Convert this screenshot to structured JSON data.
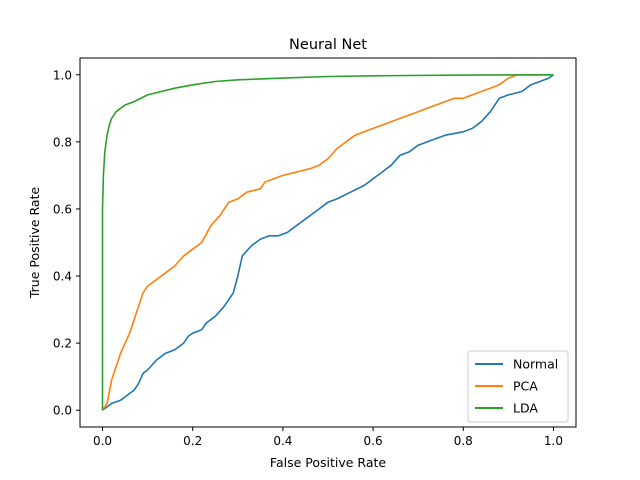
{
  "chart_data": {
    "type": "line",
    "title": "Neural Net",
    "xlabel": "False Positive Rate",
    "ylabel": "True Positive Rate",
    "xlim": [
      -0.05,
      1.05
    ],
    "ylim": [
      -0.05,
      1.05
    ],
    "xticks": [
      "0.0",
      "0.2",
      "0.4",
      "0.6",
      "0.8",
      "1.0"
    ],
    "yticks": [
      "0.0",
      "0.2",
      "0.4",
      "0.6",
      "0.8",
      "1.0"
    ],
    "grid": false,
    "legend_position": "lower right",
    "series": [
      {
        "name": "Normal",
        "color": "#1f77b4",
        "points": [
          [
            0,
            0
          ],
          [
            0.01,
            0.01
          ],
          [
            0.02,
            0.02
          ],
          [
            0.04,
            0.03
          ],
          [
            0.06,
            0.05
          ],
          [
            0.07,
            0.06
          ],
          [
            0.08,
            0.08
          ],
          [
            0.09,
            0.11
          ],
          [
            0.1,
            0.12
          ],
          [
            0.12,
            0.15
          ],
          [
            0.14,
            0.17
          ],
          [
            0.16,
            0.18
          ],
          [
            0.18,
            0.2
          ],
          [
            0.19,
            0.22
          ],
          [
            0.2,
            0.23
          ],
          [
            0.22,
            0.24
          ],
          [
            0.23,
            0.26
          ],
          [
            0.25,
            0.28
          ],
          [
            0.27,
            0.31
          ],
          [
            0.29,
            0.35
          ],
          [
            0.3,
            0.4
          ],
          [
            0.31,
            0.46
          ],
          [
            0.33,
            0.49
          ],
          [
            0.35,
            0.51
          ],
          [
            0.37,
            0.52
          ],
          [
            0.39,
            0.52
          ],
          [
            0.41,
            0.53
          ],
          [
            0.43,
            0.55
          ],
          [
            0.45,
            0.57
          ],
          [
            0.48,
            0.6
          ],
          [
            0.5,
            0.62
          ],
          [
            0.52,
            0.63
          ],
          [
            0.55,
            0.65
          ],
          [
            0.58,
            0.67
          ],
          [
            0.6,
            0.69
          ],
          [
            0.62,
            0.71
          ],
          [
            0.64,
            0.73
          ],
          [
            0.66,
            0.76
          ],
          [
            0.68,
            0.77
          ],
          [
            0.7,
            0.79
          ],
          [
            0.72,
            0.8
          ],
          [
            0.74,
            0.81
          ],
          [
            0.76,
            0.82
          ],
          [
            0.8,
            0.83
          ],
          [
            0.82,
            0.84
          ],
          [
            0.84,
            0.86
          ],
          [
            0.86,
            0.89
          ],
          [
            0.88,
            0.93
          ],
          [
            0.9,
            0.94
          ],
          [
            0.93,
            0.95
          ],
          [
            0.95,
            0.97
          ],
          [
            0.97,
            0.98
          ],
          [
            0.99,
            0.99
          ],
          [
            1.0,
            1.0
          ]
        ]
      },
      {
        "name": "PCA",
        "color": "#ff7f0e",
        "points": [
          [
            0,
            0
          ],
          [
            0.01,
            0.02
          ],
          [
            0.02,
            0.09
          ],
          [
            0.03,
            0.13
          ],
          [
            0.04,
            0.17
          ],
          [
            0.05,
            0.2
          ],
          [
            0.06,
            0.23
          ],
          [
            0.07,
            0.27
          ],
          [
            0.08,
            0.31
          ],
          [
            0.09,
            0.35
          ],
          [
            0.1,
            0.37
          ],
          [
            0.12,
            0.39
          ],
          [
            0.14,
            0.41
          ],
          [
            0.16,
            0.43
          ],
          [
            0.18,
            0.46
          ],
          [
            0.2,
            0.48
          ],
          [
            0.22,
            0.5
          ],
          [
            0.24,
            0.55
          ],
          [
            0.26,
            0.58
          ],
          [
            0.28,
            0.62
          ],
          [
            0.3,
            0.63
          ],
          [
            0.32,
            0.65
          ],
          [
            0.35,
            0.66
          ],
          [
            0.36,
            0.68
          ],
          [
            0.38,
            0.69
          ],
          [
            0.4,
            0.7
          ],
          [
            0.43,
            0.71
          ],
          [
            0.46,
            0.72
          ],
          [
            0.48,
            0.73
          ],
          [
            0.5,
            0.75
          ],
          [
            0.52,
            0.78
          ],
          [
            0.54,
            0.8
          ],
          [
            0.56,
            0.82
          ],
          [
            0.58,
            0.83
          ],
          [
            0.6,
            0.84
          ],
          [
            0.62,
            0.85
          ],
          [
            0.64,
            0.86
          ],
          [
            0.66,
            0.87
          ],
          [
            0.68,
            0.88
          ],
          [
            0.7,
            0.89
          ],
          [
            0.72,
            0.9
          ],
          [
            0.74,
            0.91
          ],
          [
            0.76,
            0.92
          ],
          [
            0.78,
            0.93
          ],
          [
            0.8,
            0.93
          ],
          [
            0.82,
            0.94
          ],
          [
            0.84,
            0.95
          ],
          [
            0.86,
            0.96
          ],
          [
            0.88,
            0.97
          ],
          [
            0.9,
            0.99
          ],
          [
            0.92,
            1.0
          ],
          [
            1.0,
            1.0
          ]
        ]
      },
      {
        "name": "LDA",
        "color": "#2ca02c",
        "points": [
          [
            0,
            0
          ],
          [
            0.0,
            0.6
          ],
          [
            0.002,
            0.7
          ],
          [
            0.005,
            0.77
          ],
          [
            0.01,
            0.82
          ],
          [
            0.015,
            0.85
          ],
          [
            0.02,
            0.87
          ],
          [
            0.03,
            0.89
          ],
          [
            0.04,
            0.9
          ],
          [
            0.05,
            0.91
          ],
          [
            0.07,
            0.92
          ],
          [
            0.1,
            0.94
          ],
          [
            0.13,
            0.95
          ],
          [
            0.16,
            0.96
          ],
          [
            0.2,
            0.97
          ],
          [
            0.25,
            0.98
          ],
          [
            0.3,
            0.985
          ],
          [
            0.4,
            0.99
          ],
          [
            0.5,
            0.995
          ],
          [
            0.6,
            0.997
          ],
          [
            0.8,
            0.999
          ],
          [
            1.0,
            1.0
          ]
        ]
      }
    ]
  }
}
